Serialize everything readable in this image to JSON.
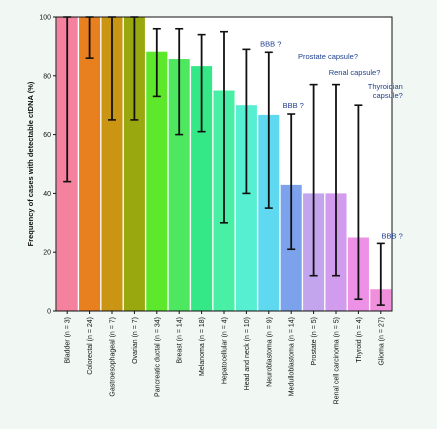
{
  "chart_data": {
    "type": "bar",
    "title": "",
    "xlabel": "",
    "ylabel": "Frequency of cases with detectable ctDNA (%)",
    "ylim": [
      0,
      100
    ],
    "yticks": [
      0,
      20,
      40,
      60,
      80,
      100
    ],
    "grid": false,
    "error_bars": true,
    "categories": [
      "Bladder (n = 3)",
      "Colorectal (n = 24)",
      "Gastroesophageal (n = 7)",
      "Ovarian (n = 7)",
      "Pancreatic ductal (n = 34)",
      "Breast (n = 14)",
      "Melanoma (n = 18)",
      "Hepatocellular (n = 4)",
      "Head and neck (n = 10)",
      "Neuroblastoma (n = 9)",
      "Medulloblastoma (n = 14)",
      "Prostate (n = 5)",
      "Renal cell carcinoma (n = 5)",
      "Thyroid (n = 4)",
      "Glioma (n = 27)"
    ],
    "values": [
      100,
      100,
      100,
      100,
      88.2,
      85.7,
      83.3,
      75,
      70,
      66.7,
      42.9,
      40,
      40,
      25,
      7.4
    ],
    "ci_low": [
      44,
      86,
      65,
      65,
      73,
      60,
      61,
      30,
      40,
      35,
      21,
      12,
      12,
      4,
      2
    ],
    "ci_high": [
      100,
      100,
      100,
      100,
      96,
      96,
      94,
      95,
      89,
      88,
      67,
      77,
      77,
      70,
      23
    ],
    "colors": [
      "#f4829f",
      "#e9801f",
      "#c99512",
      "#9aa80f",
      "#5ee82c",
      "#4ee860",
      "#35e887",
      "#48efa5",
      "#57efd1",
      "#5ed9ef",
      "#7ca2ec",
      "#c2a5ec",
      "#d19ced",
      "#ec91e6",
      "#f08fdb"
    ],
    "annotations": [
      {
        "category_index": 9,
        "lines": [
          "BBB ?"
        ]
      },
      {
        "category_index": 10,
        "lines": [
          "BBB ?"
        ]
      },
      {
        "category_index": 12,
        "lines": [
          "Prostate capsule?"
        ]
      },
      {
        "category_index": 13,
        "lines": [
          "Renal capsule?"
        ]
      },
      {
        "category_index": 14,
        "lines": [
          "Thyroidian",
          "capsule?"
        ]
      },
      {
        "category_index": 14,
        "lines": [
          "BBB ?"
        ]
      }
    ]
  }
}
